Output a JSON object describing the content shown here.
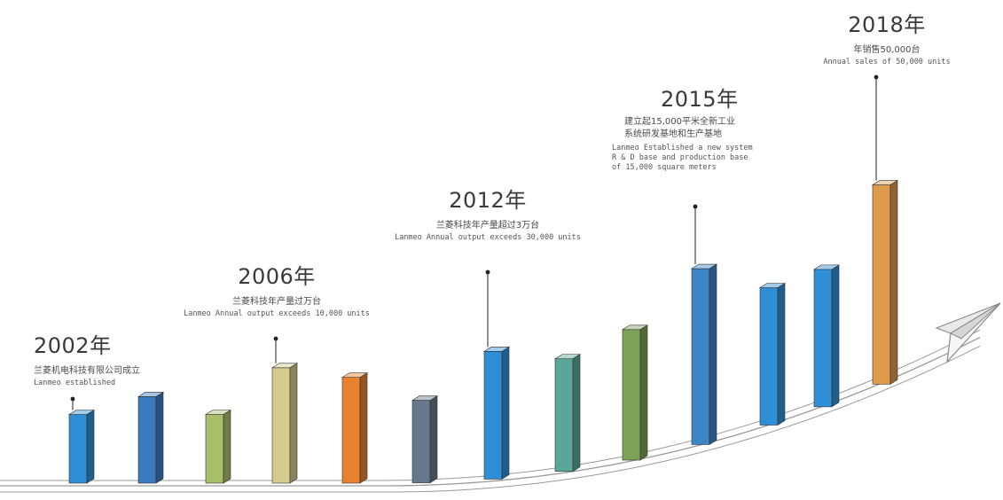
{
  "chart_data": {
    "type": "bar",
    "categories": [
      "",
      "",
      "",
      "",
      "",
      "",
      "",
      "",
      "",
      "",
      "",
      "",
      ""
    ],
    "values": [
      50,
      63,
      50,
      84,
      77,
      60,
      93,
      82,
      95,
      128,
      100,
      100,
      145
    ],
    "bar_colors": [
      "#2f8fd6",
      "#3a7bc0",
      "#a9bf6a",
      "#d5cb8c",
      "#e8822e",
      "#66788a",
      "#2f8fd6",
      "#5aa79a",
      "#7ea356",
      "#3c86c8",
      "#2f8fd6",
      "#2f8fd6",
      "#dd9a4a"
    ],
    "title": "",
    "xlabel": "",
    "ylabel": ""
  },
  "milestones": [
    {
      "year": "2002年",
      "zh": "兰菱机电科技有限公司成立",
      "en": "Lanmeo established"
    },
    {
      "year": "2006年",
      "zh": "兰菱科技年产量过万台",
      "en": "Lanmeo Annual output exceeds 10,000 units"
    },
    {
      "year": "2012年",
      "zh": "兰菱科技年产量超过3万台",
      "en": "Lanmeo Annual output exceeds 30,000 units"
    },
    {
      "year": "2015年",
      "zh": "建立起15,000平米全新工业\n系统研发基地和生产基地",
      "en": "Lanmeo Established a new system\nR & D base and production base\nof 15,000 square meters"
    },
    {
      "year": "2018年",
      "zh": "年销售50,000台",
      "en": "Annual sales of 50,000 units"
    }
  ],
  "colors": {
    "curve": "#9a9a9a",
    "pointer": "#222222",
    "plane": "#8a8a8a"
  },
  "decorations": {
    "plane_icon": "paper-plane-icon"
  }
}
